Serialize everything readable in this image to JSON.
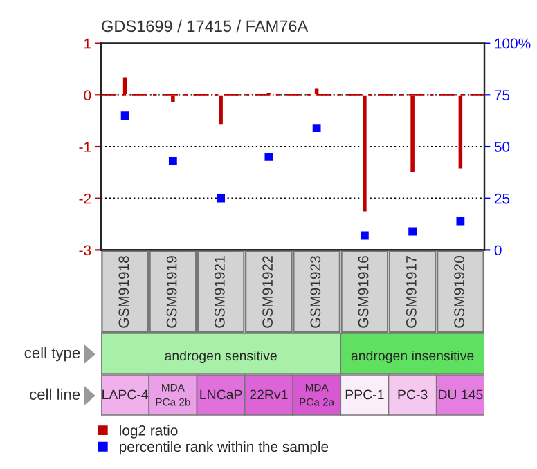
{
  "chart_data": {
    "type": "bar",
    "title": "GDS1699 / 17415 / FAM76A",
    "categories": [
      "GSM91918",
      "GSM91919",
      "GSM91921",
      "GSM91922",
      "GSM91923",
      "GSM91916",
      "GSM91917",
      "GSM91920"
    ],
    "series": [
      {
        "name": "log2 ratio",
        "color": "#c00000",
        "values": [
          0.35,
          -0.16,
          -0.58,
          0.06,
          0.15,
          -2.27,
          -1.5,
          -1.44
        ]
      },
      {
        "name": "percentile rank within the sample",
        "type": "scatter",
        "axis": "y2",
        "color": "#0000ff",
        "values": [
          65,
          43,
          25,
          45,
          59,
          7,
          9,
          14
        ]
      }
    ],
    "ylim": [
      -3,
      1
    ],
    "yticks": [
      -3,
      -2,
      -1,
      0,
      1
    ],
    "y2lim": [
      0,
      100
    ],
    "y2ticks": [
      0,
      25,
      50,
      75,
      {
        "value": 100,
        "label": "100%"
      }
    ],
    "ref_lines": [
      {
        "axis": "y",
        "value": 0,
        "color": "#c00000",
        "line_style": "dashed"
      }
    ],
    "grid": "y",
    "legend": "bottom",
    "marker": "square",
    "annotations": [
      "cell type",
      "androgen sensitive",
      "androgen insensitive",
      "cell line",
      "LAPC-4",
      "MDA\nPCa 2b",
      "LNCaP",
      "22Rv1",
      "MDA\nPCa 2a",
      "PPC-1",
      "PC-3",
      "DU 145"
    ]
  }
}
